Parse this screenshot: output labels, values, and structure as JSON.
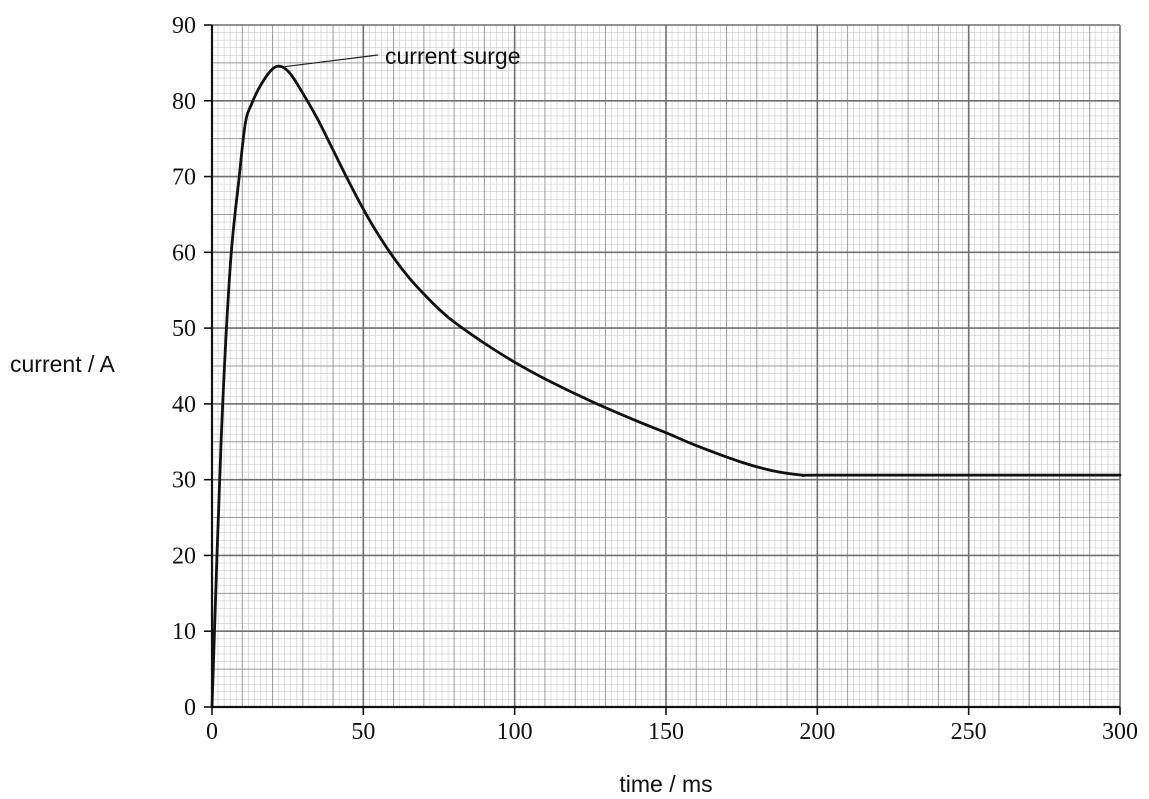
{
  "chart_data": {
    "type": "line",
    "title": "",
    "xlabel": "time / ms",
    "ylabel": "current / A",
    "xlim": [
      0,
      300
    ],
    "ylim": [
      0,
      90
    ],
    "xticks": [
      0,
      50,
      100,
      150,
      200,
      250,
      300
    ],
    "yticks": [
      0,
      10,
      20,
      30,
      40,
      50,
      60,
      70,
      80,
      90
    ],
    "grid": true,
    "series": [
      {
        "x": [
          0,
          3,
          6,
          9,
          11,
          13,
          16,
          20,
          23,
          26,
          30,
          35,
          40,
          45,
          50,
          55,
          60,
          65,
          70,
          75,
          80,
          90,
          100,
          110,
          125,
          140,
          150,
          160,
          175,
          185,
          195,
          200,
          250,
          300
        ],
        "values": [
          0,
          35,
          58,
          70,
          77,
          79.5,
          82,
          84.2,
          84.5,
          83.5,
          81,
          77.5,
          73.5,
          69.5,
          65.7,
          62.3,
          59.3,
          56.7,
          54.5,
          52.5,
          50.8,
          48,
          45.5,
          43.3,
          40.4,
          37.8,
          36.2,
          34.5,
          32.3,
          31.2,
          30.6,
          30.6,
          30.6,
          30.6
        ]
      }
    ],
    "annotations": [
      {
        "text": "current surge",
        "x": 23,
        "y": 84.5
      }
    ]
  }
}
